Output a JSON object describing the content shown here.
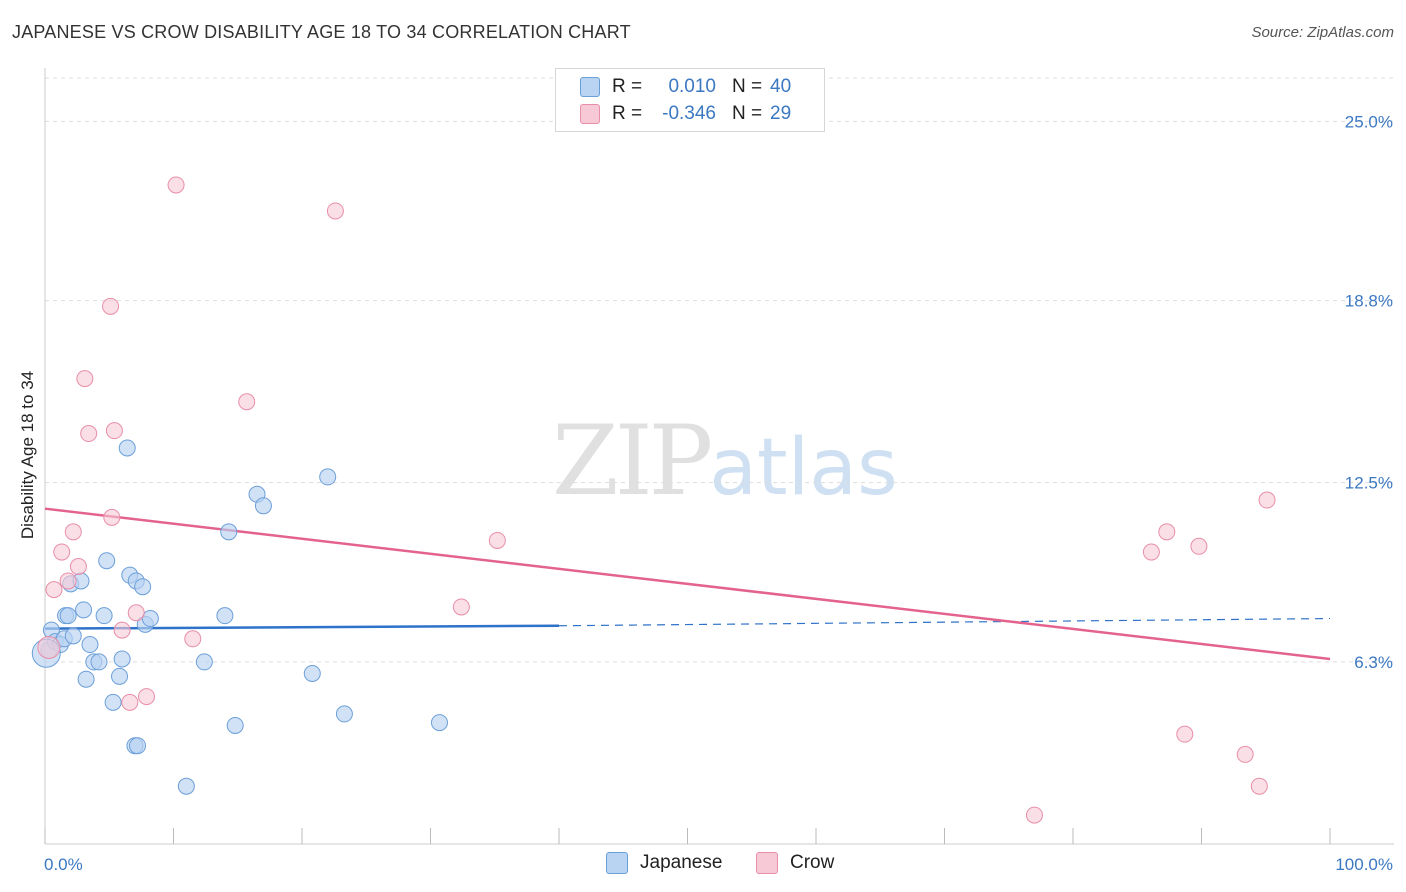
{
  "title": "JAPANESE VS CROW DISABILITY AGE 18 TO 34 CORRELATION CHART",
  "source": "Source: ZipAtlas.com",
  "watermark": {
    "zip": "ZIP",
    "atlas": "atlas"
  },
  "legend": {
    "japanese": {
      "r_label": "R =",
      "r_value": "0.010",
      "n_label": "N =",
      "n_value": "40"
    },
    "crow": {
      "r_label": "R =",
      "r_value": "-0.346",
      "n_label": "N =",
      "n_value": "29"
    }
  },
  "bottom_legend": {
    "japanese": "Japanese",
    "crow": "Crow"
  },
  "colors": {
    "japanese_fill": "#b9d3f2",
    "japanese_stroke": "#6b9fd8",
    "japanese_line": "#2f72c9",
    "crow_fill": "#f7c9d6",
    "crow_stroke": "#e88ea8",
    "crow_line": "#e3638d",
    "grid": "#dddddd",
    "axis_text": "#3b78c2"
  },
  "chart_data": {
    "type": "scatter",
    "title": "JAPANESE VS CROW DISABILITY AGE 18 TO 34 CORRELATION CHART",
    "xlabel": "",
    "ylabel": "Disability Age 18 to 34",
    "xlim": [
      0,
      100
    ],
    "ylim": [
      0,
      26.5
    ],
    "x_tick_labels": [
      "0.0%",
      "100.0%"
    ],
    "y_ticks": [
      6.3,
      12.5,
      18.8,
      25.0
    ],
    "y_tick_labels": [
      "6.3%",
      "12.5%",
      "18.8%",
      "25.0%"
    ],
    "grid": true,
    "series": [
      {
        "name": "Japanese",
        "points": [
          [
            0.3,
            6.7
          ],
          [
            0.5,
            7.4
          ],
          [
            0.8,
            7.0
          ],
          [
            1.2,
            6.9
          ],
          [
            1.5,
            7.1
          ],
          [
            1.6,
            7.9
          ],
          [
            1.8,
            7.9
          ],
          [
            2.0,
            9.0
          ],
          [
            2.2,
            7.2
          ],
          [
            2.8,
            9.1
          ],
          [
            3.0,
            8.1
          ],
          [
            3.2,
            5.7
          ],
          [
            3.5,
            6.9
          ],
          [
            3.8,
            6.3
          ],
          [
            4.2,
            6.3
          ],
          [
            4.6,
            7.9
          ],
          [
            4.8,
            9.8
          ],
          [
            5.3,
            4.9
          ],
          [
            5.8,
            5.8
          ],
          [
            6.0,
            6.4
          ],
          [
            6.4,
            13.7
          ],
          [
            6.6,
            9.3
          ],
          [
            7.0,
            3.4
          ],
          [
            7.2,
            3.4
          ],
          [
            7.1,
            9.1
          ],
          [
            7.6,
            8.9
          ],
          [
            7.8,
            7.6
          ],
          [
            8.2,
            7.8
          ],
          [
            11.0,
            2.0
          ],
          [
            12.4,
            6.3
          ],
          [
            14.0,
            7.9
          ],
          [
            14.3,
            10.8
          ],
          [
            14.8,
            4.1
          ],
          [
            16.5,
            12.1
          ],
          [
            17.0,
            11.7
          ],
          [
            20.8,
            5.9
          ],
          [
            22.0,
            12.7
          ],
          [
            23.3,
            4.5
          ],
          [
            30.7,
            4.2
          ],
          [
            0.1,
            6.6
          ]
        ]
      },
      {
        "name": "Crow",
        "points": [
          [
            0.7,
            8.8
          ],
          [
            1.3,
            10.1
          ],
          [
            1.8,
            9.1
          ],
          [
            2.2,
            10.8
          ],
          [
            2.6,
            9.6
          ],
          [
            3.1,
            16.1
          ],
          [
            3.4,
            14.2
          ],
          [
            5.2,
            11.3
          ],
          [
            5.1,
            18.6
          ],
          [
            5.4,
            14.3
          ],
          [
            6.0,
            7.4
          ],
          [
            6.6,
            4.9
          ],
          [
            7.1,
            8.0
          ],
          [
            7.9,
            5.1
          ],
          [
            10.2,
            22.8
          ],
          [
            11.5,
            7.1
          ],
          [
            15.7,
            15.3
          ],
          [
            22.6,
            21.9
          ],
          [
            32.4,
            8.2
          ],
          [
            35.2,
            10.5
          ],
          [
            94.5,
            2.0
          ],
          [
            77.0,
            1.0
          ],
          [
            86.1,
            10.1
          ],
          [
            87.3,
            10.8
          ],
          [
            88.7,
            3.8
          ],
          [
            89.8,
            10.3
          ],
          [
            93.4,
            3.1
          ],
          [
            95.1,
            11.9
          ],
          [
            0.3,
            6.8
          ]
        ]
      }
    ],
    "trend_lines": [
      {
        "name": "Japanese",
        "x": [
          0,
          40
        ],
        "y": [
          7.45,
          7.55
        ],
        "dashed_extension_to_x": 100,
        "extension_end_y": 7.8
      },
      {
        "name": "Crow",
        "x": [
          0,
          100
        ],
        "y": [
          11.6,
          6.4
        ]
      }
    ]
  }
}
